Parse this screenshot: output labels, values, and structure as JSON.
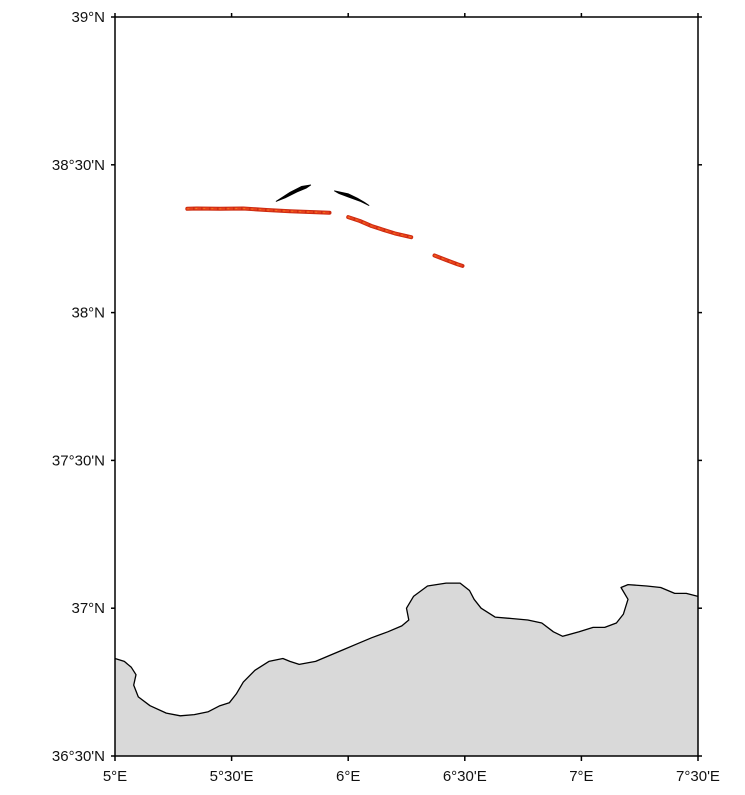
{
  "map": {
    "extent": {
      "lon_min": 5.0,
      "lon_max": 7.5,
      "lat_min": 36.5,
      "lat_max": 39.0
    },
    "colors": {
      "land": "#d9d9d9",
      "coastline": "#000000",
      "track": "#e8401c",
      "track_core": "#cc2a10",
      "track_accent": "#f07a1a",
      "black_feature": "#000000",
      "frame": "#000000"
    },
    "lon_ticks": [
      {
        "value": 5.0,
        "label": "5°E"
      },
      {
        "value": 5.5,
        "label": "5°30'E"
      },
      {
        "value": 6.0,
        "label": "6°E"
      },
      {
        "value": 6.5,
        "label": "6°30'E"
      },
      {
        "value": 7.0,
        "label": "7°E"
      },
      {
        "value": 7.5,
        "label": "7°30'E"
      }
    ],
    "lat_ticks": [
      {
        "value": 39.0,
        "label": "39°N"
      },
      {
        "value": 38.5,
        "label": "38°30'N"
      },
      {
        "value": 38.0,
        "label": "38°N"
      },
      {
        "value": 37.5,
        "label": "37°30'N"
      },
      {
        "value": 37.0,
        "label": "37°N"
      },
      {
        "value": 36.5,
        "label": "36°30'N"
      }
    ],
    "tracks": [
      {
        "points": [
          [
            5.31,
            38.351
          ],
          [
            5.35,
            38.352
          ],
          [
            5.45,
            38.351
          ],
          [
            5.55,
            38.352
          ],
          [
            5.65,
            38.347
          ],
          [
            5.75,
            38.343
          ],
          [
            5.85,
            38.34
          ],
          [
            5.92,
            38.338
          ]
        ]
      },
      {
        "points": [
          [
            6.0,
            38.323
          ],
          [
            6.05,
            38.31
          ],
          [
            6.1,
            38.293
          ],
          [
            6.15,
            38.28
          ],
          [
            6.2,
            38.268
          ],
          [
            6.27,
            38.255
          ]
        ]
      },
      {
        "points": [
          [
            6.37,
            38.193
          ],
          [
            6.42,
            38.178
          ],
          [
            6.47,
            38.163
          ],
          [
            6.49,
            38.158
          ]
        ]
      }
    ],
    "black_features": [
      {
        "points": [
          [
            5.69,
            38.376
          ],
          [
            5.75,
            38.407
          ],
          [
            5.8,
            38.427
          ],
          [
            5.84,
            38.432
          ],
          [
            5.82,
            38.421
          ],
          [
            5.78,
            38.408
          ],
          [
            5.73,
            38.388
          ]
        ]
      },
      {
        "points": [
          [
            5.94,
            38.412
          ],
          [
            6.0,
            38.402
          ],
          [
            6.04,
            38.387
          ],
          [
            6.07,
            38.373
          ],
          [
            6.09,
            38.362
          ],
          [
            6.05,
            38.377
          ],
          [
            6.0,
            38.391
          ],
          [
            5.96,
            38.403
          ]
        ]
      }
    ],
    "coastline": [
      [
        5.0,
        36.83
      ],
      [
        5.04,
        36.82
      ],
      [
        5.07,
        36.8
      ],
      [
        5.09,
        36.775
      ],
      [
        5.08,
        36.74
      ],
      [
        5.1,
        36.7
      ],
      [
        5.15,
        36.67
      ],
      [
        5.22,
        36.645
      ],
      [
        5.28,
        36.636
      ],
      [
        5.34,
        36.64
      ],
      [
        5.4,
        36.65
      ],
      [
        5.45,
        36.67
      ],
      [
        5.49,
        36.68
      ],
      [
        5.52,
        36.71
      ],
      [
        5.55,
        36.75
      ],
      [
        5.6,
        36.79
      ],
      [
        5.66,
        36.82
      ],
      [
        5.72,
        36.83
      ],
      [
        5.75,
        36.82
      ],
      [
        5.79,
        36.81
      ],
      [
        5.86,
        36.82
      ],
      [
        5.92,
        36.84
      ],
      [
        5.98,
        36.86
      ],
      [
        6.04,
        36.88
      ],
      [
        6.1,
        36.9
      ],
      [
        6.17,
        36.92
      ],
      [
        6.23,
        36.94
      ],
      [
        6.26,
        36.96
      ],
      [
        6.25,
        37.0
      ],
      [
        6.28,
        37.04
      ],
      [
        6.34,
        37.075
      ],
      [
        6.42,
        37.085
      ],
      [
        6.48,
        37.085
      ],
      [
        6.52,
        37.06
      ],
      [
        6.54,
        37.03
      ],
      [
        6.57,
        37.0
      ],
      [
        6.63,
        36.97
      ],
      [
        6.7,
        36.965
      ],
      [
        6.77,
        36.96
      ],
      [
        6.83,
        36.95
      ],
      [
        6.88,
        36.92
      ],
      [
        6.92,
        36.905
      ],
      [
        6.99,
        36.92
      ],
      [
        7.05,
        36.935
      ],
      [
        7.1,
        36.935
      ],
      [
        7.15,
        36.95
      ],
      [
        7.18,
        36.98
      ],
      [
        7.2,
        37.03
      ],
      [
        7.17,
        37.07
      ],
      [
        7.2,
        37.08
      ],
      [
        7.28,
        37.075
      ],
      [
        7.34,
        37.07
      ],
      [
        7.4,
        37.05
      ],
      [
        7.45,
        37.05
      ],
      [
        7.5,
        37.04
      ]
    ]
  }
}
